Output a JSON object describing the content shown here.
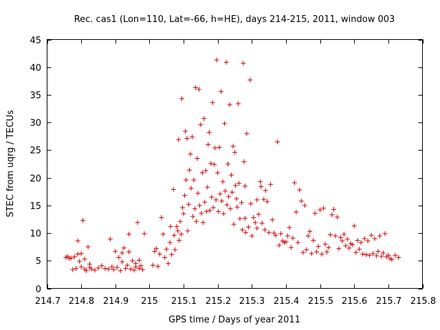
{
  "chart_data": {
    "type": "scatter",
    "title": "Rec. cas1 (Lon=110, Lat=-66, h=HE), days 214-215, 2011, window 003",
    "xlabel": "GPS time / Days of year 2011",
    "ylabel": "STEC from uqrg / TECUs",
    "xlim": [
      214.7,
      215.8
    ],
    "ylim": [
      0,
      45
    ],
    "x_ticks": [
      214.7,
      214.8,
      214.9,
      215.0,
      215.1,
      215.2,
      215.3,
      215.4,
      215.5,
      215.6,
      215.7,
      215.8
    ],
    "x_tick_labels": [
      "214.7",
      "214.8",
      "214.9",
      "215",
      "215.1",
      "215.2",
      "215.3",
      "215.4",
      "215.5",
      "215.6",
      "215.7",
      "215.8"
    ],
    "y_ticks": [
      0,
      5,
      10,
      15,
      20,
      25,
      30,
      35,
      40,
      45
    ],
    "y_tick_labels": [
      "0",
      "5",
      "10",
      "15",
      "20",
      "25",
      "30",
      "35",
      "40",
      "45"
    ],
    "grid": false,
    "marker": "+",
    "marker_color": "#cc0000",
    "points": [
      [
        214.755,
        5.6
      ],
      [
        214.76,
        5.8
      ],
      [
        214.765,
        5.4
      ],
      [
        214.77,
        5.5
      ],
      [
        214.775,
        3.4
      ],
      [
        214.78,
        5.7
      ],
      [
        214.785,
        3.6
      ],
      [
        214.79,
        6.2
      ],
      [
        214.795,
        4.9
      ],
      [
        214.8,
        3.9
      ],
      [
        214.805,
        12.3
      ],
      [
        214.81,
        3.5
      ],
      [
        214.815,
        3.2
      ],
      [
        214.82,
        7.5
      ],
      [
        214.825,
        3.8
      ],
      [
        214.83,
        3.5
      ],
      [
        214.84,
        3.3
      ],
      [
        214.85,
        3.7
      ],
      [
        214.86,
        4.1
      ],
      [
        214.87,
        3.6
      ],
      [
        214.88,
        3.5
      ],
      [
        214.885,
        8.9
      ],
      [
        214.89,
        3.9
      ],
      [
        214.895,
        3.4
      ],
      [
        214.9,
        6.7
      ],
      [
        214.905,
        3.8
      ],
      [
        214.91,
        5.6
      ],
      [
        214.915,
        3.2
      ],
      [
        214.92,
        6.4
      ],
      [
        214.925,
        7.3
      ],
      [
        214.93,
        3.6
      ],
      [
        214.935,
        4.2
      ],
      [
        214.94,
        9.8
      ],
      [
        214.945,
        3.5
      ],
      [
        214.95,
        5.0
      ],
      [
        214.955,
        3.3
      ],
      [
        214.96,
        4.5
      ],
      [
        214.965,
        11.9
      ],
      [
        214.97,
        3.6
      ],
      [
        214.975,
        4.1
      ],
      [
        214.98,
        3.4
      ],
      [
        214.985,
        9.9
      ],
      [
        214.79,
        8.6
      ],
      [
        214.8,
        6.3
      ],
      [
        214.92,
        4.8
      ],
      [
        214.94,
        6.6
      ],
      [
        214.96,
        3.9
      ],
      [
        214.97,
        5.1
      ],
      [
        214.81,
        5.3
      ],
      [
        214.825,
        4.4
      ],
      [
        215.01,
        4.2
      ],
      [
        215.015,
        6.7
      ],
      [
        215.02,
        7.2
      ],
      [
        215.025,
        4.0
      ],
      [
        215.03,
        6.2
      ],
      [
        215.035,
        12.8
      ],
      [
        215.04,
        9.8
      ],
      [
        215.045,
        5.6
      ],
      [
        215.05,
        7.1
      ],
      [
        215.055,
        4.5
      ],
      [
        215.06,
        8.3
      ],
      [
        215.062,
        11.2
      ],
      [
        215.065,
        6.1
      ],
      [
        215.07,
        17.9
      ],
      [
        215.072,
        9.6
      ],
      [
        215.075,
        7.0
      ],
      [
        215.08,
        11.2
      ],
      [
        215.083,
        10.4
      ],
      [
        215.085,
        26.9
      ],
      [
        215.087,
        8.7
      ],
      [
        215.09,
        12.1
      ],
      [
        215.093,
        9.8
      ],
      [
        215.095,
        34.3
      ],
      [
        215.097,
        14.6
      ],
      [
        215.1,
        13.5
      ],
      [
        215.103,
        16.8
      ],
      [
        215.105,
        28.4
      ],
      [
        215.107,
        19.6
      ],
      [
        215.11,
        27.1
      ],
      [
        215.112,
        10.4
      ],
      [
        215.115,
        15.2
      ],
      [
        215.117,
        21.4
      ],
      [
        215.12,
        24.3
      ],
      [
        215.122,
        18.1
      ],
      [
        215.125,
        27.4
      ],
      [
        215.127,
        13.0
      ],
      [
        215.13,
        19.6
      ],
      [
        215.133,
        14.4
      ],
      [
        215.135,
        36.3
      ],
      [
        215.137,
        12.1
      ],
      [
        215.14,
        23.5
      ],
      [
        215.142,
        17.2
      ],
      [
        215.145,
        36.0
      ],
      [
        215.147,
        15.0
      ],
      [
        215.15,
        29.6
      ],
      [
        215.152,
        13.6
      ],
      [
        215.155,
        20.9
      ],
      [
        215.157,
        11.9
      ],
      [
        215.16,
        30.7
      ],
      [
        215.162,
        15.6
      ],
      [
        215.165,
        21.3
      ],
      [
        215.167,
        13.9
      ],
      [
        215.17,
        18.3
      ],
      [
        215.172,
        26.0
      ],
      [
        215.175,
        28.2
      ],
      [
        215.177,
        14.1
      ],
      [
        215.18,
        22.6
      ],
      [
        215.182,
        16.5
      ],
      [
        215.185,
        33.6
      ],
      [
        215.187,
        14.6
      ],
      [
        215.19,
        22.4
      ],
      [
        215.192,
        25.4
      ],
      [
        215.195,
        16.0
      ],
      [
        215.197,
        41.3
      ],
      [
        215.2,
        20.9
      ],
      [
        215.202,
        13.9
      ],
      [
        215.205,
        25.5
      ],
      [
        215.207,
        17.1
      ],
      [
        215.21,
        35.6
      ],
      [
        215.212,
        15.8
      ],
      [
        215.215,
        19.3
      ],
      [
        215.217,
        13.5
      ],
      [
        215.22,
        29.8
      ],
      [
        215.222,
        17.6
      ],
      [
        215.225,
        40.9
      ],
      [
        215.227,
        15.1
      ],
      [
        215.23,
        22.5
      ],
      [
        215.232,
        16.6
      ],
      [
        215.235,
        33.2
      ],
      [
        215.237,
        14.4
      ],
      [
        215.24,
        20.5
      ],
      [
        215.242,
        17.4
      ],
      [
        215.245,
        25.7
      ],
      [
        215.247,
        11.6
      ],
      [
        215.25,
        24.6
      ],
      [
        215.252,
        18.6
      ],
      [
        215.255,
        16.2
      ],
      [
        215.257,
        14.7
      ],
      [
        215.26,
        33.4
      ],
      [
        215.262,
        19.0
      ],
      [
        215.265,
        12.6
      ],
      [
        215.27,
        15.5
      ],
      [
        215.272,
        10.6
      ],
      [
        215.275,
        40.7
      ],
      [
        215.277,
        22.9
      ],
      [
        215.28,
        12.7
      ],
      [
        215.282,
        10.1
      ],
      [
        215.285,
        28.0
      ],
      [
        215.29,
        11.1
      ],
      [
        215.295,
        37.7
      ],
      [
        215.297,
        15.3
      ],
      [
        215.3,
        9.5
      ],
      [
        215.305,
        12.8
      ],
      [
        215.31,
        11.9
      ],
      [
        215.315,
        10.9
      ],
      [
        215.32,
        13.4
      ],
      [
        215.325,
        19.3
      ],
      [
        215.327,
        18.4
      ],
      [
        215.33,
        11.8
      ],
      [
        215.335,
        16.1
      ],
      [
        215.338,
        10.6
      ],
      [
        215.34,
        17.7
      ],
      [
        215.345,
        15.7
      ],
      [
        215.35,
        10.1
      ],
      [
        215.355,
        18.8
      ],
      [
        215.36,
        12.4
      ],
      [
        215.365,
        10.0
      ],
      [
        215.37,
        9.6
      ],
      [
        215.375,
        26.5
      ],
      [
        215.38,
        7.8
      ],
      [
        215.385,
        9.9
      ],
      [
        215.39,
        8.6
      ],
      [
        215.395,
        8.3
      ],
      [
        215.4,
        8.4
      ],
      [
        215.405,
        9.5
      ],
      [
        215.41,
        11.0
      ],
      [
        215.415,
        7.4
      ],
      [
        215.42,
        9.1
      ],
      [
        215.425,
        19.1
      ],
      [
        215.43,
        13.8
      ],
      [
        215.435,
        8.3
      ],
      [
        215.44,
        17.8
      ],
      [
        215.445,
        15.8
      ],
      [
        215.45,
        6.5
      ],
      [
        215.455,
        15.0
      ],
      [
        215.46,
        7.0
      ],
      [
        215.465,
        9.5
      ],
      [
        215.47,
        10.3
      ],
      [
        215.475,
        6.3
      ],
      [
        215.48,
        8.7
      ],
      [
        215.485,
        13.6
      ],
      [
        215.49,
        6.6
      ],
      [
        215.495,
        7.6
      ],
      [
        215.5,
        14.2
      ],
      [
        215.505,
        6.2
      ],
      [
        215.51,
        14.5
      ],
      [
        215.515,
        8.0
      ],
      [
        215.52,
        6.6
      ],
      [
        215.525,
        7.4
      ],
      [
        215.53,
        9.7
      ],
      [
        215.535,
        13.3
      ],
      [
        215.54,
        14.3
      ],
      [
        215.545,
        9.5
      ],
      [
        215.55,
        12.9
      ],
      [
        215.555,
        7.2
      ],
      [
        215.56,
        9.2
      ],
      [
        215.565,
        8.6
      ],
      [
        215.57,
        9.8
      ],
      [
        215.575,
        7.7
      ],
      [
        215.58,
        8.9
      ],
      [
        215.585,
        7.3
      ],
      [
        215.59,
        8.1
      ],
      [
        215.595,
        7.9
      ],
      [
        215.6,
        11.3
      ],
      [
        215.605,
        6.5
      ],
      [
        215.61,
        8.7
      ],
      [
        215.615,
        7.1
      ],
      [
        215.62,
        8.3
      ],
      [
        215.625,
        6.2
      ],
      [
        215.63,
        9.0
      ],
      [
        215.635,
        6.1
      ],
      [
        215.64,
        8.6
      ],
      [
        215.645,
        6.0
      ],
      [
        215.65,
        9.6
      ],
      [
        215.655,
        6.3
      ],
      [
        215.66,
        9.0
      ],
      [
        215.665,
        5.9
      ],
      [
        215.67,
        6.7
      ],
      [
        215.675,
        9.5
      ],
      [
        215.68,
        5.8
      ],
      [
        215.685,
        6.4
      ],
      [
        215.69,
        9.9
      ],
      [
        215.695,
        5.7
      ],
      [
        215.7,
        6.0
      ],
      [
        215.705,
        5.4
      ],
      [
        215.71,
        5.2
      ],
      [
        215.72,
        6.0
      ],
      [
        215.73,
        5.6
      ],
      [
        215.315,
        16.0
      ],
      [
        215.28,
        18.5
      ]
    ]
  }
}
